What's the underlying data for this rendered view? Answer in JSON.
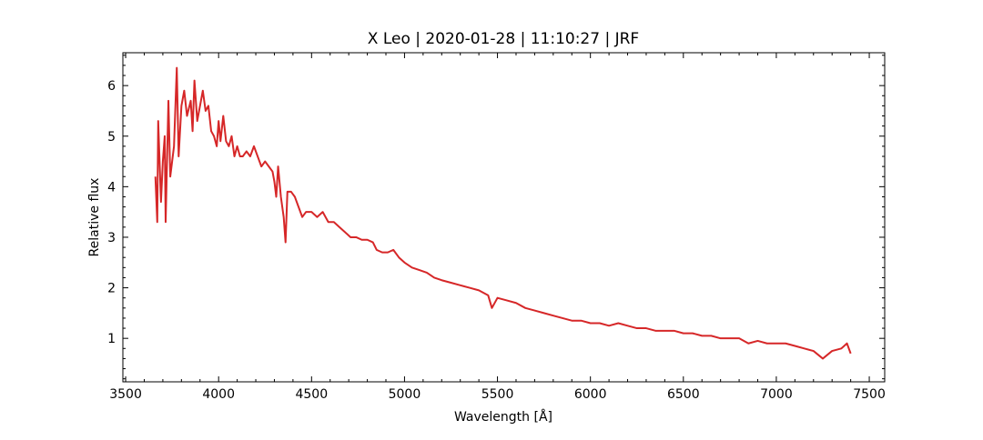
{
  "chart_data": {
    "type": "line",
    "title": "X Leo | 2020-01-28 | 11:10:27 | JRF",
    "xlabel": "Wavelength [Å]",
    "ylabel": "Relative flux",
    "x": [
      3660,
      3670,
      3675,
      3690,
      3700,
      3710,
      3715,
      3730,
      3740,
      3760,
      3775,
      3785,
      3800,
      3815,
      3830,
      3850,
      3860,
      3870,
      3885,
      3900,
      3915,
      3930,
      3945,
      3960,
      3975,
      3990,
      4000,
      4010,
      4025,
      4040,
      4055,
      4070,
      4085,
      4100,
      4115,
      4130,
      4150,
      4170,
      4190,
      4210,
      4230,
      4250,
      4270,
      4290,
      4300,
      4310,
      4320,
      4335,
      4350,
      4360,
      4370,
      4390,
      4410,
      4430,
      4450,
      4470,
      4500,
      4530,
      4560,
      4590,
      4620,
      4650,
      4680,
      4710,
      4740,
      4770,
      4800,
      4830,
      4850,
      4880,
      4910,
      4940,
      4970,
      5000,
      5040,
      5080,
      5120,
      5160,
      5200,
      5250,
      5300,
      5350,
      5400,
      5450,
      5470,
      5500,
      5550,
      5600,
      5650,
      5700,
      5750,
      5800,
      5850,
      5900,
      5950,
      6000,
      6050,
      6100,
      6150,
      6200,
      6250,
      6300,
      6350,
      6400,
      6450,
      6500,
      6550,
      6600,
      6650,
      6700,
      6750,
      6800,
      6850,
      6900,
      6950,
      7000,
      7050,
      7100,
      7150,
      7200,
      7250,
      7300,
      7350,
      7380,
      7400
    ],
    "series": [
      {
        "name": "X Leo",
        "color": "#d62728",
        "values": [
          4.2,
          3.3,
          5.3,
          3.7,
          4.5,
          5.0,
          3.3,
          5.7,
          4.2,
          4.8,
          6.35,
          4.6,
          5.6,
          5.9,
          5.4,
          5.7,
          5.1,
          6.1,
          5.3,
          5.6,
          5.9,
          5.5,
          5.6,
          5.1,
          5.0,
          4.8,
          5.3,
          4.9,
          5.4,
          4.9,
          4.8,
          5.0,
          4.6,
          4.8,
          4.6,
          4.6,
          4.7,
          4.6,
          4.8,
          4.6,
          4.4,
          4.5,
          4.4,
          4.3,
          4.1,
          3.8,
          4.4,
          3.8,
          3.4,
          2.9,
          3.9,
          3.9,
          3.8,
          3.6,
          3.4,
          3.5,
          3.5,
          3.4,
          3.5,
          3.3,
          3.3,
          3.2,
          3.1,
          3.0,
          3.0,
          2.95,
          2.95,
          2.9,
          2.75,
          2.7,
          2.7,
          2.75,
          2.6,
          2.5,
          2.4,
          2.35,
          2.3,
          2.2,
          2.15,
          2.1,
          2.05,
          2.0,
          1.95,
          1.85,
          1.6,
          1.8,
          1.75,
          1.7,
          1.6,
          1.55,
          1.5,
          1.45,
          1.4,
          1.35,
          1.35,
          1.3,
          1.3,
          1.25,
          1.3,
          1.25,
          1.2,
          1.2,
          1.15,
          1.15,
          1.15,
          1.1,
          1.1,
          1.05,
          1.05,
          1.0,
          1.0,
          1.0,
          0.9,
          0.95,
          0.9,
          0.9,
          0.9,
          0.85,
          0.8,
          0.75,
          0.6,
          0.75,
          0.8,
          0.9,
          0.7
        ]
      }
    ],
    "xlim": [
      3485,
      7583
    ],
    "ylim": [
      0.14,
      6.65
    ],
    "xticks": [
      3500,
      4000,
      4500,
      5000,
      5500,
      6000,
      6500,
      7000,
      7500
    ],
    "yticks": [
      1,
      2,
      3,
      4,
      5,
      6
    ],
    "minor_ticks": true
  }
}
